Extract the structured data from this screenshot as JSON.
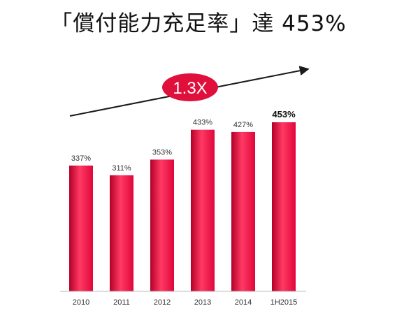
{
  "title": "「償付能力充足率」達 453%",
  "colors": {
    "bar": "#e0063a",
    "bar_dark": "#b20027",
    "bar_light": "#ff3a64",
    "badge": "#e0103c",
    "arrow": "#1a1a1a"
  },
  "chart_data": {
    "type": "bar",
    "title": "「償付能力充足率」達 453%",
    "categories": [
      "2010",
      "2011",
      "2012",
      "2013",
      "2014",
      "1H2015"
    ],
    "values": [
      337,
      311,
      353,
      433,
      427,
      453
    ],
    "data_labels": [
      "337%",
      "311%",
      "353%",
      "433%",
      "427%",
      "453%"
    ],
    "bold_labels": [
      false,
      false,
      false,
      false,
      false,
      true
    ],
    "unit": "%",
    "xlabel": "",
    "ylabel": "",
    "grid": false,
    "growth_annotation": "1.3X"
  }
}
